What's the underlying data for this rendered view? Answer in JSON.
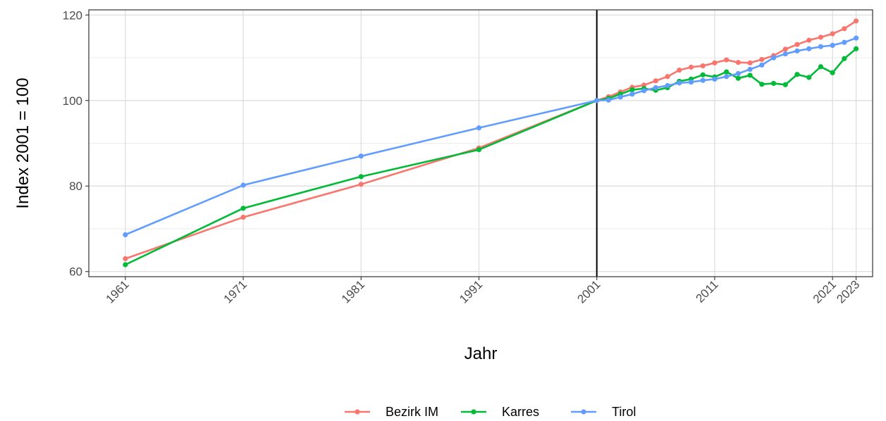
{
  "chart_data": {
    "type": "line",
    "xlabel": "Jahr",
    "ylabel": "Index 2001 = 100",
    "xlim": [
      1957.9,
      2024.4
    ],
    "ylim": [
      58.8,
      121.2
    ],
    "x_ticks": [
      1961,
      1971,
      1981,
      1991,
      2001,
      2011,
      2021,
      2023
    ],
    "y_ticks": [
      60,
      80,
      100,
      120
    ],
    "grid": true,
    "vline_x": 2001,
    "legend_position": "bottom",
    "series": [
      {
        "name": "Bezirk IM",
        "color": "#f8766d",
        "x": [
          1961,
          1971,
          1981,
          1991,
          2001,
          2002,
          2003,
          2004,
          2005,
          2006,
          2007,
          2008,
          2009,
          2010,
          2011,
          2012,
          2013,
          2014,
          2015,
          2016,
          2017,
          2018,
          2019,
          2020,
          2021,
          2022,
          2023
        ],
        "values": [
          63.0,
          72.7,
          80.4,
          88.9,
          100.0,
          100.9,
          102.0,
          103.1,
          103.6,
          104.6,
          105.6,
          107.1,
          107.8,
          108.1,
          108.8,
          109.5,
          108.9,
          108.8,
          109.6,
          110.5,
          112.0,
          113.1,
          114.1,
          114.8,
          115.6,
          116.8,
          118.6
        ]
      },
      {
        "name": "Karres",
        "color": "#00ba38",
        "x": [
          1961,
          1971,
          1981,
          1991,
          2001,
          2002,
          2003,
          2004,
          2005,
          2006,
          2007,
          2008,
          2009,
          2010,
          2011,
          2012,
          2013,
          2014,
          2015,
          2016,
          2017,
          2018,
          2019,
          2020,
          2021,
          2022,
          2023
        ],
        "values": [
          61.6,
          74.8,
          82.2,
          88.5,
          100.0,
          100.5,
          101.5,
          102.5,
          102.8,
          102.4,
          103.0,
          104.5,
          105.0,
          106.0,
          105.5,
          106.7,
          105.2,
          105.9,
          103.8,
          104.0,
          103.7,
          106.1,
          105.4,
          107.9,
          106.5,
          109.8,
          112.1
        ]
      },
      {
        "name": "Tirol",
        "color": "#619cff",
        "x": [
          1961,
          1971,
          1981,
          1991,
          2001,
          2002,
          2003,
          2004,
          2005,
          2006,
          2007,
          2008,
          2009,
          2010,
          2011,
          2012,
          2013,
          2014,
          2015,
          2016,
          2017,
          2018,
          2019,
          2020,
          2021,
          2022,
          2023
        ],
        "values": [
          68.6,
          80.2,
          87.0,
          93.6,
          100.0,
          100.1,
          100.8,
          101.5,
          102.3,
          103.0,
          103.5,
          104.1,
          104.3,
          104.7,
          105.0,
          105.6,
          106.3,
          107.3,
          108.3,
          110.0,
          110.9,
          111.6,
          112.1,
          112.6,
          112.9,
          113.6,
          114.6
        ]
      }
    ]
  }
}
